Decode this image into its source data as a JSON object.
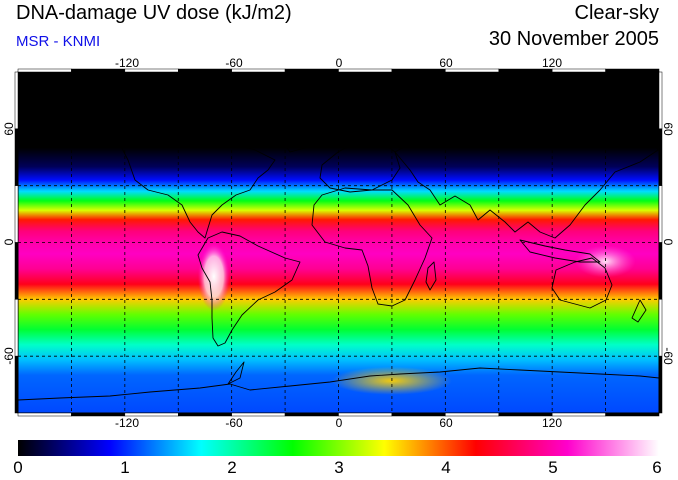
{
  "header": {
    "title": "DNA-damage UV dose (kJ/m2)",
    "subtitle": "MSR - KNMI",
    "sky_condition": "Clear-sky",
    "date": "30 November 2005"
  },
  "map": {
    "lon_ticks": [
      "-120",
      "-60",
      "0",
      "60",
      "120"
    ],
    "lat_ticks_left": [
      "60",
      "0",
      "-60"
    ],
    "lat_ticks_right": [
      "60",
      "0",
      "-60"
    ],
    "lon_range": [
      -180,
      180
    ],
    "lat_range": [
      -90,
      90
    ],
    "uv_profile": [
      {
        "lat": 90,
        "value": 0.0
      },
      {
        "lat": 50,
        "value": 0.0
      },
      {
        "lat": 40,
        "value": 0.3
      },
      {
        "lat": 33,
        "value": 0.9
      },
      {
        "lat": 27,
        "value": 1.6
      },
      {
        "lat": 22,
        "value": 2.5
      },
      {
        "lat": 17,
        "value": 3.3
      },
      {
        "lat": 12,
        "value": 4.2
      },
      {
        "lat": 6,
        "value": 4.8
      },
      {
        "lat": 0,
        "value": 5.0
      },
      {
        "lat": -6,
        "value": 5.1
      },
      {
        "lat": -14,
        "value": 4.9
      },
      {
        "lat": -22,
        "value": 4.4
      },
      {
        "lat": -30,
        "value": 3.6
      },
      {
        "lat": -38,
        "value": 2.9
      },
      {
        "lat": -46,
        "value": 2.4
      },
      {
        "lat": -54,
        "value": 1.9
      },
      {
        "lat": -62,
        "value": 1.5
      },
      {
        "lat": -70,
        "value": 1.2
      },
      {
        "lat": -90,
        "value": 1.1
      }
    ],
    "hotspots": [
      {
        "lon": -70,
        "lat": -18,
        "value": 6.0
      },
      {
        "lon": 30,
        "lat": -73,
        "value": 3.6
      },
      {
        "lon": 150,
        "lat": -10,
        "value": 5.8
      }
    ]
  },
  "colorbar": {
    "min": 0,
    "max": 6,
    "labels": [
      "0",
      "1",
      "2",
      "3",
      "4",
      "5",
      "6"
    ],
    "colors": [
      "#000000",
      "#0000ff",
      "#00ffff",
      "#00ff00",
      "#ffff00",
      "#ff0000",
      "#ff00cc",
      "#ffffff"
    ]
  }
}
